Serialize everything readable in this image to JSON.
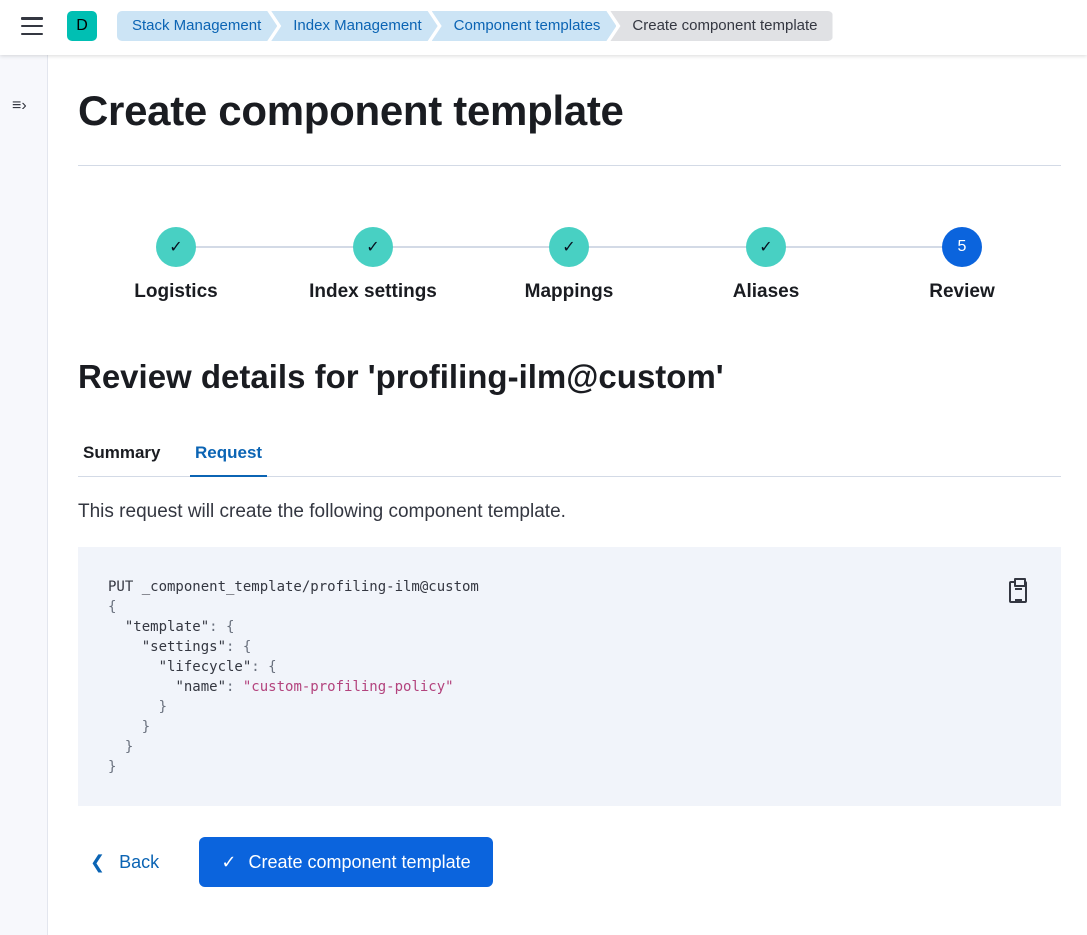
{
  "header": {
    "logo_letter": "D",
    "breadcrumbs": [
      "Stack Management",
      "Index Management",
      "Component templates",
      "Create component template"
    ]
  },
  "page": {
    "title": "Create component template"
  },
  "steps": [
    {
      "label": "Logistics",
      "status": "complete"
    },
    {
      "label": "Index settings",
      "status": "complete"
    },
    {
      "label": "Mappings",
      "status": "complete"
    },
    {
      "label": "Aliases",
      "status": "complete"
    },
    {
      "label": "Review",
      "status": "current",
      "number": "5"
    }
  ],
  "review": {
    "heading": "Review details for 'profiling-ilm@custom'",
    "tabs": [
      {
        "label": "Summary",
        "active": false
      },
      {
        "label": "Request",
        "active": true
      }
    ],
    "description": "This request will create the following component template.",
    "request": {
      "method_line": "PUT _component_template/profiling-ilm@custom",
      "k_template": "\"template\"",
      "k_settings": "\"settings\"",
      "k_lifecycle": "\"lifecycle\"",
      "k_name": "\"name\"",
      "v_name": "\"custom-profiling-policy\""
    }
  },
  "actions": {
    "back": "Back",
    "create": "Create component template"
  },
  "colors": {
    "primary": "#0b64dd",
    "step_complete": "#48d0c3",
    "breadcrumb": "#cce4f5"
  }
}
